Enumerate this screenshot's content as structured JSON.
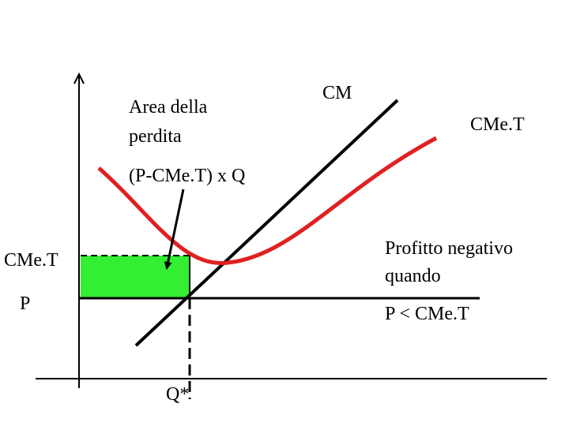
{
  "area_label": {
    "lines": [
      "Area della",
      "perdita"
    ]
  },
  "formula": "(P-CMe.T) x Q",
  "curves": {
    "mc": "CM",
    "atc": "CMe.T"
  },
  "y_axis_labels": {
    "atc": "CMe.T",
    "price": "P"
  },
  "x_axis_label": "Q*",
  "note": {
    "lines": [
      "Profitto negativo",
      "quando",
      "P < CMe.T"
    ]
  }
}
